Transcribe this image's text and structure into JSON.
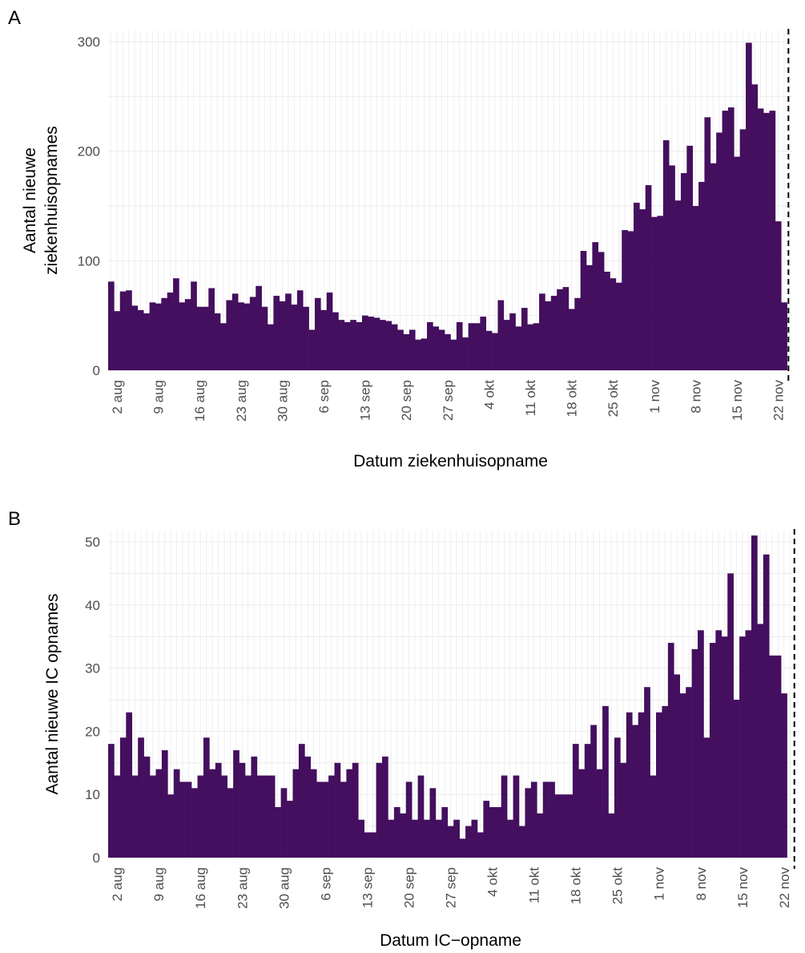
{
  "chart_data": [
    {
      "panel_label": "A",
      "type": "bar",
      "x_type": "date",
      "start_date": "2020-08-01",
      "ylabel_lines": [
        "Aantal nieuwe",
        "ziekenhuisopnames"
      ],
      "xlabel": "Datum ziekenhuisopname",
      "ylim": [
        0,
        300
      ],
      "yticks": [
        0,
        100,
        200,
        300
      ],
      "xticks": [
        "2 aug",
        "9 aug",
        "16 aug",
        "23 aug",
        "30 aug",
        "6 sep",
        "13 sep",
        "20 sep",
        "27 sep",
        "4 okt",
        "11 okt",
        "18 okt",
        "25 okt",
        "1 nov",
        "8 nov",
        "15 nov",
        "22 nov"
      ],
      "values": [
        81,
        54,
        72,
        73,
        59,
        55,
        52,
        62,
        61,
        66,
        71,
        84,
        62,
        65,
        81,
        58,
        58,
        75,
        52,
        43,
        64,
        70,
        62,
        61,
        67,
        77,
        58,
        42,
        68,
        63,
        70,
        60,
        73,
        58,
        37,
        66,
        55,
        71,
        53,
        46,
        44,
        46,
        44,
        50,
        49,
        48,
        46,
        45,
        42,
        37,
        33,
        37,
        28,
        29,
        44,
        40,
        37,
        33,
        28,
        44,
        30,
        43,
        43,
        49,
        36,
        34,
        64,
        46,
        52,
        40,
        57,
        42,
        43,
        70,
        63,
        68,
        74,
        76,
        56,
        66,
        109,
        96,
        117,
        108,
        90,
        84,
        80,
        128,
        127,
        153,
        147,
        169,
        140,
        141,
        210,
        187,
        155,
        180,
        205,
        150,
        172,
        231,
        189,
        217,
        237,
        240,
        195,
        220,
        299,
        261,
        239,
        235,
        237,
        136,
        62
      ],
      "marker_date": "2020-11-24"
    },
    {
      "panel_label": "B",
      "type": "bar",
      "x_type": "date",
      "start_date": "2020-08-01",
      "ylabel": "Aantal nieuwe IC opnames",
      "xlabel": "Datum IC−opname",
      "ylim": [
        0,
        50
      ],
      "yticks": [
        0,
        10,
        20,
        30,
        40,
        50
      ],
      "xticks": [
        "2 aug",
        "9 aug",
        "16 aug",
        "23 aug",
        "30 aug",
        "6 sep",
        "13 sep",
        "20 sep",
        "27 sep",
        "4 okt",
        "11 okt",
        "18 okt",
        "25 okt",
        "1 nov",
        "8 nov",
        "15 nov",
        "22 nov"
      ],
      "values": [
        18,
        13,
        19,
        23,
        13,
        19,
        16,
        13,
        14,
        17,
        10,
        14,
        12,
        12,
        11,
        13,
        19,
        14,
        15,
        13,
        11,
        17,
        15,
        13,
        16,
        13,
        13,
        13,
        8,
        11,
        9,
        14,
        18,
        16,
        14,
        12,
        12,
        13,
        15,
        12,
        14,
        15,
        6,
        4,
        4,
        15,
        16,
        6,
        8,
        7,
        12,
        6,
        13,
        6,
        11,
        6,
        8,
        5,
        6,
        3,
        5,
        6,
        4,
        9,
        8,
        8,
        13,
        6,
        13,
        5,
        11,
        12,
        7,
        12,
        12,
        10,
        10,
        10,
        18,
        14,
        18,
        21,
        14,
        24,
        7,
        19,
        15,
        23,
        21,
        23,
        27,
        13,
        23,
        24,
        34,
        29,
        26,
        27,
        33,
        36,
        19,
        34,
        36,
        35,
        45,
        25,
        35,
        36,
        51,
        37,
        48,
        32,
        32,
        26
      ],
      "marker_date": "2020-11-24"
    }
  ]
}
